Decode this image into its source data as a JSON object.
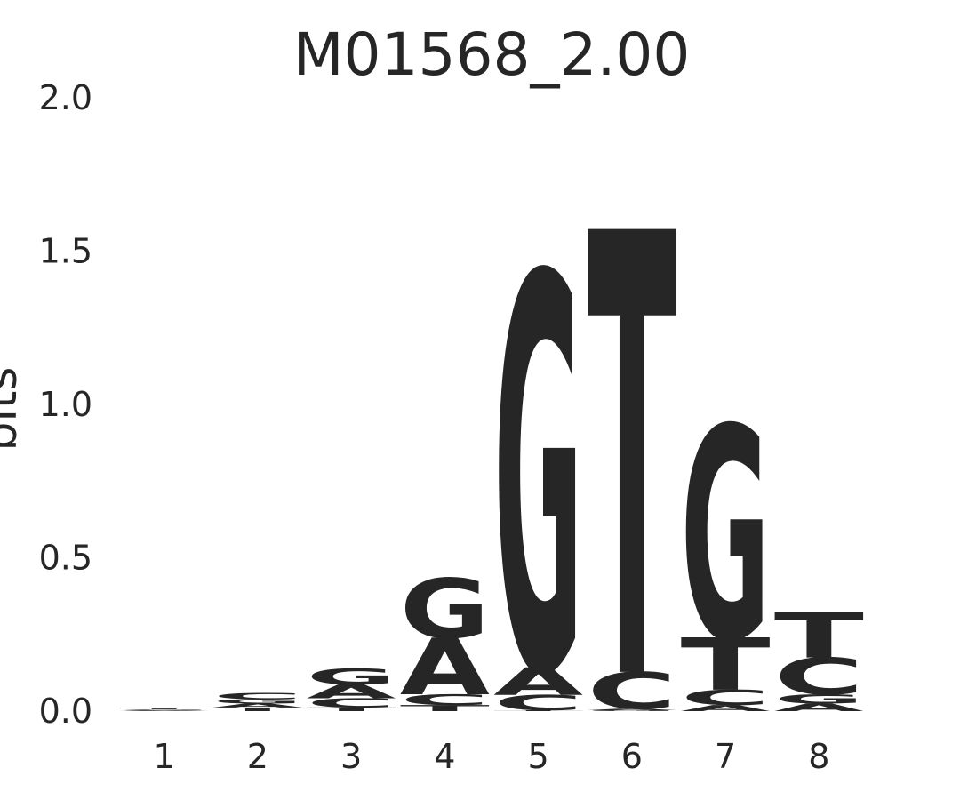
{
  "chart_data": {
    "type": "logo",
    "title": "M01568_2.00",
    "ylabel": "bits",
    "categories": [
      "1",
      "2",
      "3",
      "4",
      "5",
      "6",
      "7",
      "8"
    ],
    "series": [
      {
        "name": "A",
        "color": "#008000",
        "values": [
          0.002,
          0.013,
          0.045,
          0.185,
          0.09,
          0.005,
          0.02,
          0.025
        ]
      },
      {
        "name": "C",
        "color": "#0000ff",
        "values": [
          0.002,
          0.02,
          0.03,
          0.035,
          0.05,
          0.12,
          0.05,
          0.12
        ]
      },
      {
        "name": "G",
        "color": "#ffa500",
        "values": [
          0.002,
          0.014,
          0.052,
          0.195,
          1.29,
          0.003,
          0.693,
          0.03
        ]
      },
      {
        "name": "T",
        "color": "#ff0000",
        "values": [
          0.005,
          0.012,
          0.012,
          0.02,
          0.003,
          1.446,
          0.171,
          0.15
        ]
      }
    ],
    "ylim": [
      0,
      2
    ],
    "yticks": [
      {
        "value": 0,
        "label": "0.0"
      },
      {
        "value": 0.5,
        "label": "0.5"
      },
      {
        "value": 1,
        "label": "1.0"
      },
      {
        "value": 1.5,
        "label": "1.5"
      },
      {
        "value": 2,
        "label": "2.0"
      }
    ]
  }
}
